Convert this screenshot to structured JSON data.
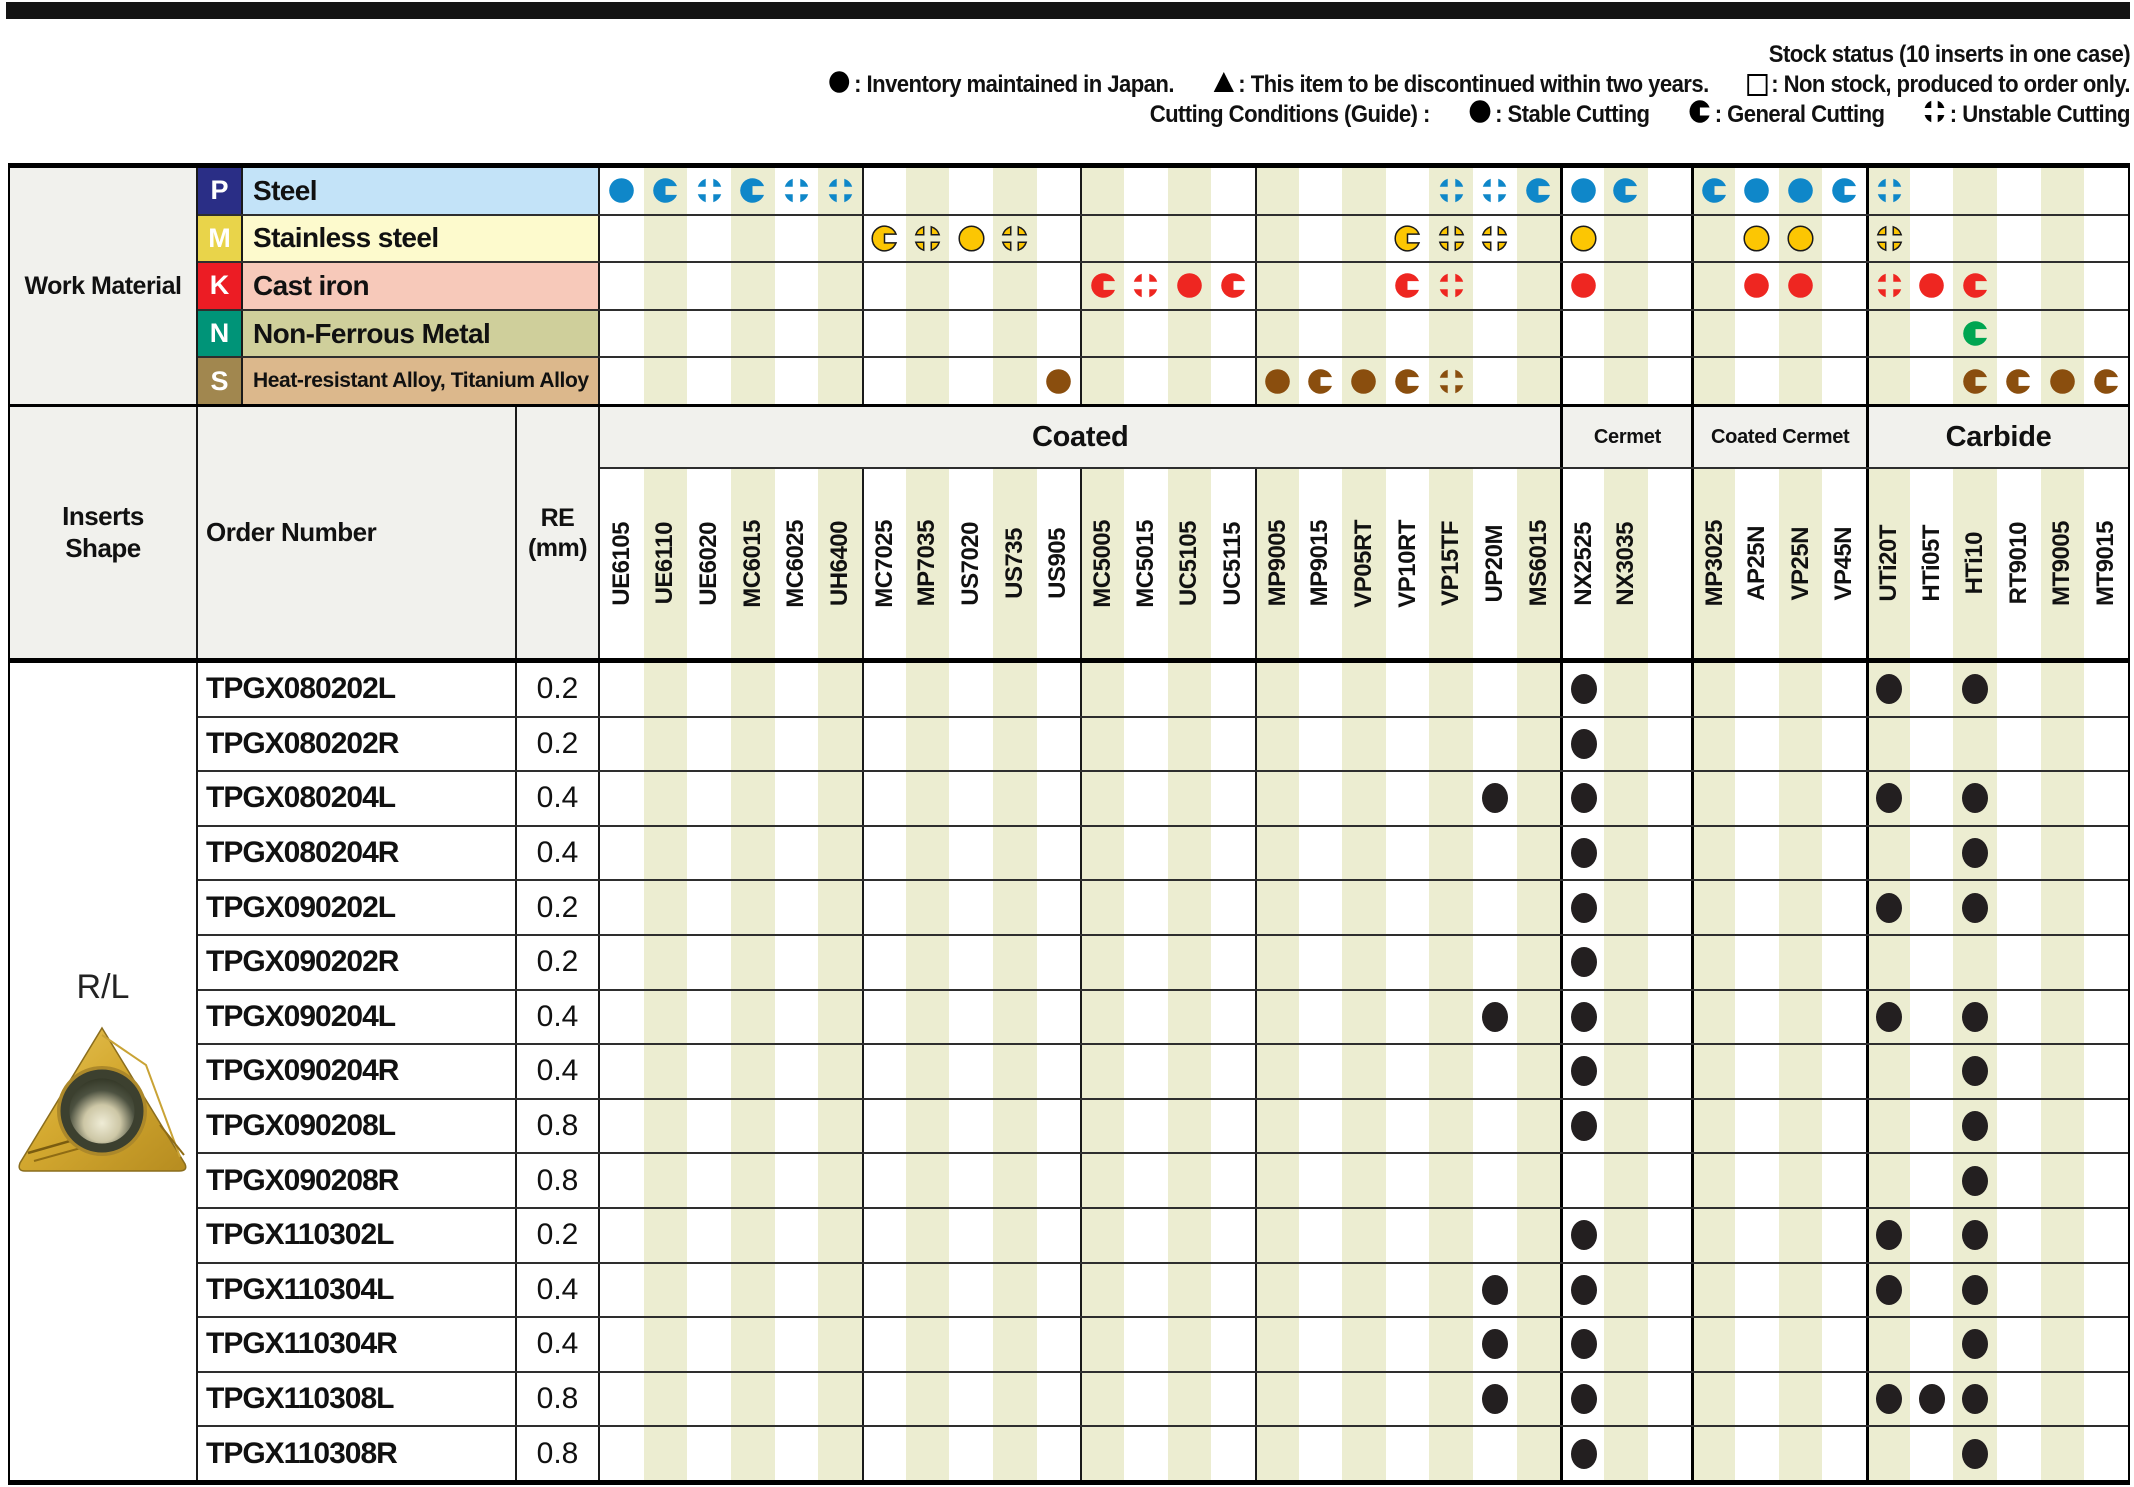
{
  "legend": {
    "line1": "Stock status (10 inserts in one case)",
    "line2": [
      {
        "icon": "circle-filled-icon",
        "text": ": Inventory maintained in Japan."
      },
      {
        "icon": "triangle-filled-icon",
        "text": ": This item to be discontinued within two years."
      },
      {
        "icon": "square-outline-icon",
        "text": ": Non stock, produced to order only."
      }
    ],
    "line3_label": "Cutting Conditions (Guide) :",
    "line3": [
      {
        "icon": "stable-cutting-icon",
        "text": ": Stable Cutting"
      },
      {
        "icon": "general-cutting-icon",
        "text": ": General Cutting"
      },
      {
        "icon": "unstable-cutting-icon",
        "text": ": Unstable Cutting"
      }
    ]
  },
  "work_material": {
    "title": "Work Material",
    "rows": [
      {
        "code": "P",
        "name": "Steel",
        "badge_color": "#2a2e86",
        "row_color": "#c3e3f8",
        "icon_color": "#0f87c9",
        "outlined": false,
        "small": false,
        "icons": {
          "0": "s",
          "1": "g",
          "2": "u",
          "3": "g",
          "4": "u",
          "5": "u",
          "19": "u",
          "20": "u",
          "21": "g",
          "22": "s",
          "23": "g",
          "25": "g",
          "26": "s",
          "27": "s",
          "28": "g",
          "29": "u"
        }
      },
      {
        "code": "M",
        "name": "Stainless steel",
        "badge_color": "#e9d44a",
        "row_color": "#fdfacd",
        "icon_color": "#fcc603",
        "outlined": true,
        "small": false,
        "icons": {
          "6": "g",
          "7": "u",
          "8": "s",
          "9": "u",
          "18": "g",
          "19": "u",
          "20": "u",
          "22": "s",
          "26": "s",
          "27": "s",
          "29": "u"
        }
      },
      {
        "code": "K",
        "name": "Cast iron",
        "badge_color": "#ec1c24",
        "row_color": "#f7c9ba",
        "icon_color": "#ee2621",
        "outlined": false,
        "small": false,
        "icons": {
          "11": "g",
          "12": "u",
          "13": "s",
          "14": "g",
          "18": "g",
          "19": "u",
          "22": "s",
          "26": "s",
          "27": "s",
          "29": "u",
          "30": "s",
          "31": "g"
        }
      },
      {
        "code": "N",
        "name": "Non-Ferrous Metal",
        "badge_color": "#009478",
        "row_color": "#cfcf9b",
        "icon_color": "#00a551",
        "outlined": false,
        "small": false,
        "icons": {
          "31": "g"
        }
      },
      {
        "code": "S",
        "name": "Heat-resistant Alloy, Titanium Alloy",
        "badge_color": "#a1874f",
        "row_color": "#dcb88c",
        "icon_color": "#8a4e0e",
        "outlined": false,
        "small": true,
        "icons": {
          "10": "s",
          "15": "s",
          "16": "g",
          "17": "s",
          "18": "g",
          "19": "u",
          "31": "g",
          "32": "g",
          "33": "s",
          "34": "g"
        }
      }
    ]
  },
  "header": {
    "inserts_shape": "Inserts\nShape",
    "order_number": "Order Number",
    "re": "RE\n(mm)",
    "groups": [
      {
        "label": "Coated",
        "cols": 22,
        "large": true
      },
      {
        "label": "Cermet",
        "cols": 3,
        "large": false
      },
      {
        "label": "Coated Cermet",
        "cols": 4,
        "large": false
      },
      {
        "label": "Carbide",
        "cols": 6,
        "large": true
      }
    ],
    "grades": [
      "UE6105",
      "UE6110",
      "UE6020",
      "MC6015",
      "MC6025",
      "UH6400",
      "MC7025",
      "MP7035",
      "US7020",
      "US735",
      "US905",
      "MC5005",
      "MC5015",
      "UC5105",
      "UC5115",
      "MP9005",
      "MP9015",
      "VP05RT",
      "VP10RT",
      "VP15TF",
      "UP20M",
      "MS6015",
      "NX2525",
      "NX3035",
      "",
      "MP3025",
      "AP25N",
      "VP25N",
      "VP45N",
      "UTi20T",
      "HTi05T",
      "HTi10",
      "RT9010",
      "MT9005",
      "MT9015"
    ],
    "subgroup_dividers": [
      6,
      11,
      15
    ],
    "group_dividers": [
      22,
      25,
      29
    ]
  },
  "shape_label": "R/L",
  "rows": [
    {
      "order": "TPGX080202L",
      "re": "0.2",
      "dots": [
        22,
        29,
        31
      ]
    },
    {
      "order": "TPGX080202R",
      "re": "0.2",
      "dots": [
        22
      ]
    },
    {
      "order": "TPGX080204L",
      "re": "0.4",
      "dots": [
        20,
        22,
        29,
        31
      ]
    },
    {
      "order": "TPGX080204R",
      "re": "0.4",
      "dots": [
        22,
        31
      ]
    },
    {
      "order": "TPGX090202L",
      "re": "0.2",
      "dots": [
        22,
        29,
        31
      ]
    },
    {
      "order": "TPGX090202R",
      "re": "0.2",
      "dots": [
        22
      ]
    },
    {
      "order": "TPGX090204L",
      "re": "0.4",
      "dots": [
        20,
        22,
        29,
        31
      ]
    },
    {
      "order": "TPGX090204R",
      "re": "0.4",
      "dots": [
        22,
        31
      ]
    },
    {
      "order": "TPGX090208L",
      "re": "0.8",
      "dots": [
        22,
        31
      ]
    },
    {
      "order": "TPGX090208R",
      "re": "0.8",
      "dots": [
        31
      ]
    },
    {
      "order": "TPGX110302L",
      "re": "0.2",
      "dots": [
        22,
        29,
        31
      ]
    },
    {
      "order": "TPGX110304L",
      "re": "0.4",
      "dots": [
        20,
        22,
        29,
        31
      ]
    },
    {
      "order": "TPGX110304R",
      "re": "0.4",
      "dots": [
        20,
        22,
        31
      ]
    },
    {
      "order": "TPGX110308L",
      "re": "0.8",
      "dots": [
        20,
        22,
        29,
        30,
        31
      ]
    },
    {
      "order": "TPGX110308R",
      "re": "0.8",
      "dots": [
        22,
        31
      ]
    }
  ],
  "colors": {
    "stripe": "#ecedd1",
    "header_gray": "#f1f1ed",
    "dot": "#231f20",
    "legend_icon": "#000000"
  }
}
